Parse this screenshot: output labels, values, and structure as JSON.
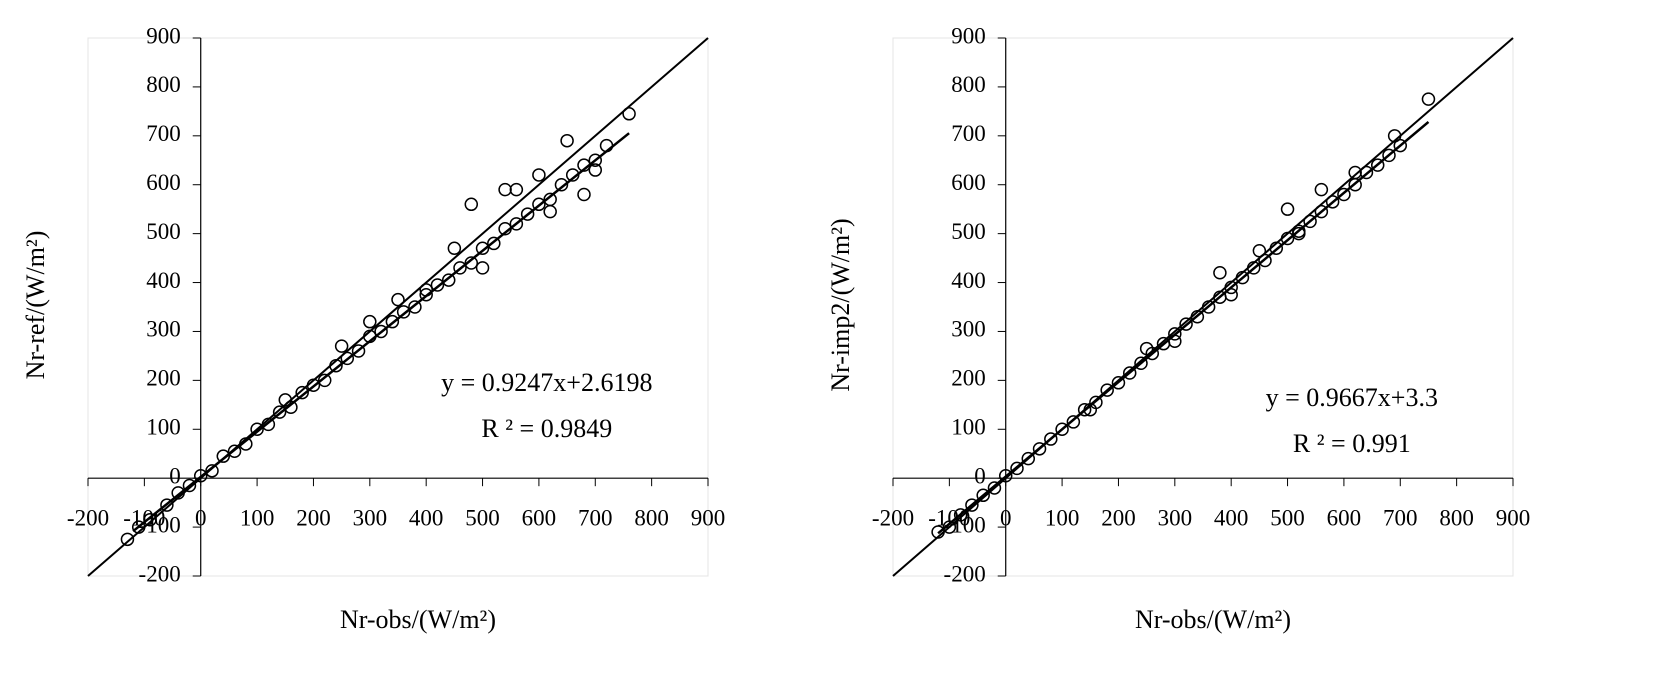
{
  "chart_data": [
    {
      "type": "scatter",
      "x_label": "Nr-obs/(W/m²)",
      "y_label": "Nr-ref/(W/m²)",
      "annotations": [
        "y = 0.9247x+2.6198",
        "R ² = 0.9849"
      ],
      "xlim": [
        -200,
        900
      ],
      "ylim": [
        -200,
        900
      ],
      "xticks": [
        -200,
        -100,
        0,
        100,
        200,
        300,
        400,
        500,
        600,
        700,
        800,
        900
      ],
      "yticks": [
        -200,
        -100,
        0,
        100,
        200,
        300,
        400,
        500,
        600,
        700,
        800,
        900
      ],
      "identity_line": true,
      "trendline": {
        "slope": 0.9247,
        "intercept": 2.6198,
        "x": [
          -120,
          760
        ]
      },
      "series": [
        {
          "color": "#000000",
          "x": [
            -130,
            -110,
            -90,
            -60,
            -40,
            -20,
            0,
            20,
            40,
            60,
            80,
            100,
            120,
            140,
            160,
            180,
            200,
            220,
            240,
            260,
            280,
            300,
            320,
            340,
            360,
            380,
            400,
            420,
            440,
            460,
            480,
            500,
            520,
            540,
            560,
            580,
            600,
            620,
            640,
            660,
            680,
            700,
            720,
            760,
            650,
            540,
            450,
            300,
            500,
            600,
            700,
            400,
            480,
            560,
            350,
            250,
            150,
            620,
            680
          ],
          "values": [
            -125,
            -100,
            -85,
            -55,
            -30,
            -15,
            5,
            15,
            45,
            55,
            70,
            100,
            110,
            135,
            145,
            175,
            190,
            200,
            230,
            245,
            260,
            290,
            300,
            320,
            340,
            350,
            375,
            395,
            405,
            430,
            440,
            470,
            480,
            510,
            520,
            540,
            560,
            570,
            600,
            620,
            640,
            650,
            680,
            745,
            690,
            590,
            470,
            320,
            430,
            620,
            630,
            385,
            560,
            590,
            365,
            270,
            160,
            545,
            580
          ]
        }
      ]
    },
    {
      "type": "scatter",
      "x_label": "Nr-obs/(W/m²)",
      "y_label": "Nr-imp2/(W/m²)",
      "annotations": [
        "y = 0.9667x+3.3",
        "R ² = 0.991"
      ],
      "xlim": [
        -200,
        900
      ],
      "ylim": [
        -200,
        900
      ],
      "xticks": [
        -200,
        -100,
        0,
        100,
        200,
        300,
        400,
        500,
        600,
        700,
        800,
        900
      ],
      "yticks": [
        -200,
        -100,
        0,
        100,
        200,
        300,
        400,
        500,
        600,
        700,
        800,
        900
      ],
      "identity_line": true,
      "trendline": {
        "slope": 0.9667,
        "intercept": 3.3,
        "x": [
          -120,
          750
        ]
      },
      "series": [
        {
          "color": "#000000",
          "x": [
            -120,
            -100,
            -80,
            -60,
            -40,
            -20,
            0,
            20,
            40,
            60,
            80,
            100,
            120,
            140,
            160,
            180,
            200,
            220,
            240,
            260,
            280,
            300,
            320,
            340,
            360,
            380,
            400,
            420,
            440,
            460,
            480,
            500,
            520,
            540,
            560,
            580,
            600,
            620,
            640,
            660,
            680,
            700,
            750,
            690,
            500,
            450,
            300,
            560,
            620,
            400,
            250,
            150,
            380,
            520
          ],
          "values": [
            -110,
            -100,
            -75,
            -55,
            -35,
            -20,
            5,
            20,
            40,
            60,
            80,
            100,
            115,
            140,
            155,
            180,
            195,
            215,
            235,
            255,
            275,
            295,
            315,
            330,
            350,
            370,
            390,
            410,
            430,
            445,
            470,
            490,
            505,
            525,
            545,
            565,
            580,
            600,
            625,
            640,
            660,
            680,
            775,
            700,
            550,
            465,
            280,
            590,
            625,
            375,
            265,
            140,
            420,
            500
          ]
        }
      ]
    }
  ]
}
